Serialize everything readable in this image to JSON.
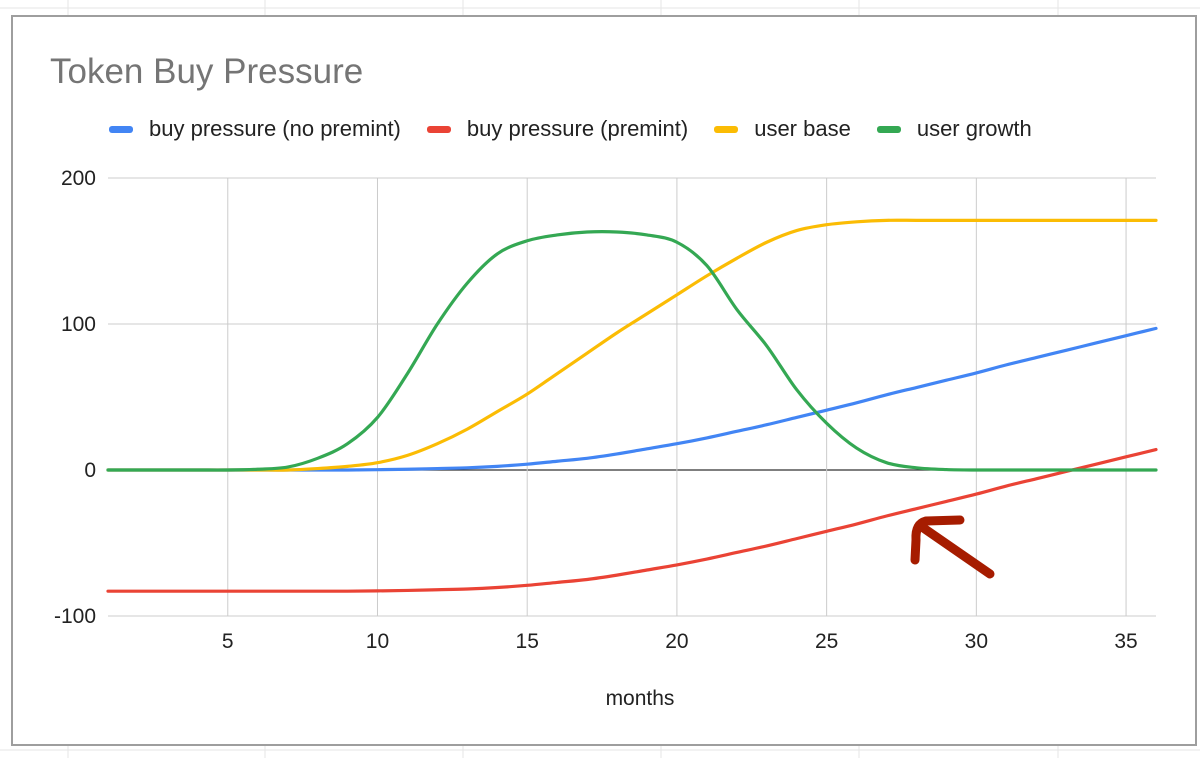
{
  "chart_data": {
    "type": "line",
    "title": "Token Buy Pressure",
    "xlabel": "months",
    "ylabel": "",
    "xlim": [
      1,
      36
    ],
    "ylim": [
      -100,
      200
    ],
    "x_ticks": [
      "5",
      "10",
      "15",
      "20",
      "25",
      "30",
      "35"
    ],
    "y_ticks": [
      "200",
      "100",
      "0",
      "-100"
    ],
    "grid": true,
    "legend_position": "top",
    "x": [
      1,
      2,
      3,
      4,
      5,
      6,
      7,
      8,
      9,
      10,
      11,
      12,
      13,
      14,
      15,
      16,
      17,
      18,
      19,
      20,
      21,
      22,
      23,
      24,
      25,
      26,
      27,
      28,
      29,
      30,
      31,
      32,
      33,
      34,
      35,
      36
    ],
    "series": [
      {
        "name": "buy pressure (no premint)",
        "color": "#4285f4",
        "values": [
          0,
          0,
          0,
          0,
          0,
          0,
          0,
          0,
          0,
          0.2,
          0.5,
          1,
          1.5,
          2.5,
          4,
          6,
          8,
          11,
          14.5,
          18,
          22,
          26.5,
          31,
          36,
          41,
          46,
          51.5,
          56.5,
          61.5,
          66.5,
          72,
          77,
          82,
          87,
          92,
          97
        ]
      },
      {
        "name": "buy pressure (premint)",
        "color": "#ea4335",
        "values": [
          -83,
          -83,
          -83,
          -83,
          -83,
          -83,
          -83,
          -83,
          -83,
          -82.8,
          -82.5,
          -82,
          -81.5,
          -80.5,
          -79,
          -77,
          -75,
          -72,
          -68.5,
          -65,
          -61,
          -56.5,
          -52,
          -47,
          -42,
          -37,
          -31.5,
          -26.5,
          -21.5,
          -16.5,
          -11,
          -6,
          -1,
          4,
          9,
          14
        ]
      },
      {
        "name": "user base",
        "color": "#fbbc04",
        "values": [
          0,
          0,
          0,
          0,
          0,
          0,
          0,
          1,
          2.5,
          5,
          10,
          18,
          28,
          40,
          52,
          66,
          80,
          94,
          107,
          120,
          133,
          145,
          156,
          164,
          168,
          170,
          171,
          171,
          171,
          171,
          171,
          171,
          171,
          171,
          171,
          171
        ]
      },
      {
        "name": "user growth",
        "color": "#34a853",
        "values": [
          0,
          0,
          0,
          0,
          0,
          0.5,
          2,
          8,
          18,
          36,
          66,
          100,
          128,
          148,
          157,
          161,
          163,
          163,
          161,
          156,
          140,
          110,
          85,
          55,
          32,
          15,
          5,
          1.5,
          0.3,
          0,
          0,
          0,
          0,
          0,
          0,
          0
        ]
      }
    ]
  },
  "annotation": {
    "arrow_color": "#a61c00"
  }
}
